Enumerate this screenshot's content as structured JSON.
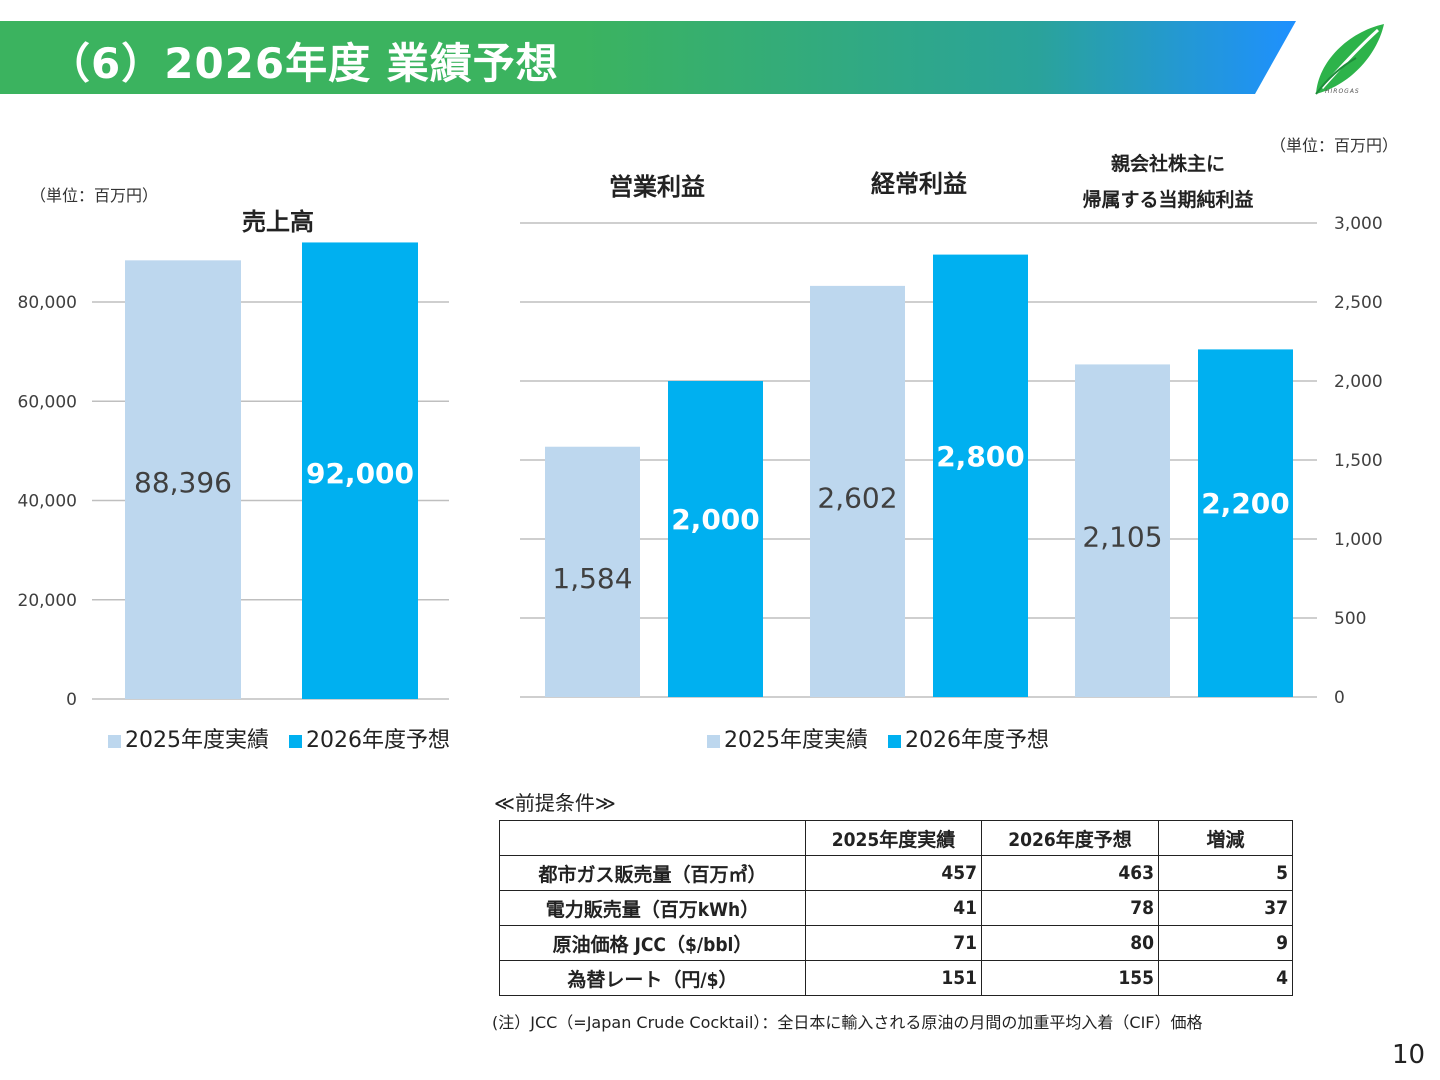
{
  "header": {
    "title": "（6）2026年度 業績予想"
  },
  "logo": {
    "text": "HIROGAS"
  },
  "colors": {
    "actual": "#bdd7ee",
    "forecast": "#00b0f0",
    "grid": "#bfbfbf",
    "header_green": "#3bb35f",
    "header_blue": "#1e90ff"
  },
  "left_unit": "（単位：百万円）",
  "right_unit": "（単位：百万円）",
  "legend": {
    "actual": "2025年度実績",
    "forecast": "2026年度予想"
  },
  "chart_data": [
    {
      "type": "bar",
      "title": "売上高",
      "categories": [
        "売上高"
      ],
      "series": [
        {
          "name": "2025年度実績",
          "values": [
            88396
          ],
          "labels": [
            "88,396"
          ]
        },
        {
          "name": "2026年度予想",
          "values": [
            92000
          ],
          "labels": [
            "92,000"
          ]
        }
      ],
      "ylim": [
        0,
        90000
      ],
      "yticks": [
        0,
        20000,
        40000,
        60000,
        80000
      ],
      "ytick_labels": [
        "0",
        "20,000",
        "40,000",
        "60,000",
        "80,000"
      ],
      "grid": true,
      "legend_position": "bottom"
    },
    {
      "type": "bar",
      "categories": [
        "営業利益",
        "経常利益",
        "親会社株主に|帰属する当期純利益"
      ],
      "category_lines": [
        [
          "営業利益"
        ],
        [
          "経常利益"
        ],
        [
          "親会社株主に",
          "帰属する当期純利益"
        ]
      ],
      "series": [
        {
          "name": "2025年度実績",
          "values": [
            1584,
            2602,
            2105
          ],
          "labels": [
            "1,584",
            "2,602",
            "2,105"
          ]
        },
        {
          "name": "2026年度予想",
          "values": [
            2000,
            2800,
            2200
          ],
          "labels": [
            "2,000",
            "2,800",
            "2,200"
          ]
        }
      ],
      "ylim": [
        0,
        3000
      ],
      "yticks": [
        0,
        500,
        1000,
        1500,
        2000,
        2500,
        3000
      ],
      "ytick_labels": [
        "0",
        "500",
        "1,000",
        "1,500",
        "2,000",
        "2,500",
        "3,000"
      ],
      "axis_side": "right",
      "grid": true,
      "legend_position": "bottom"
    }
  ],
  "assumptions": {
    "title": "≪前提条件≫",
    "headers": [
      "",
      "2025年度実績",
      "2026年度予想",
      "増減"
    ],
    "rows": [
      [
        "都市ガス販売量（百万㎥）",
        "457",
        "463",
        "5"
      ],
      [
        "電力販売量（百万kWh）",
        "41",
        "78",
        "37"
      ],
      [
        "原油価格 JCC（$/bbl）",
        "71",
        "80",
        "9"
      ],
      [
        "為替レート（円/$）",
        "151",
        "155",
        "4"
      ]
    ],
    "note": "(注）JCC（=Japan Crude Cocktail）：全日本に輸入される原油の月間の加重平均入着（CIF）価格"
  },
  "page_number": "10"
}
